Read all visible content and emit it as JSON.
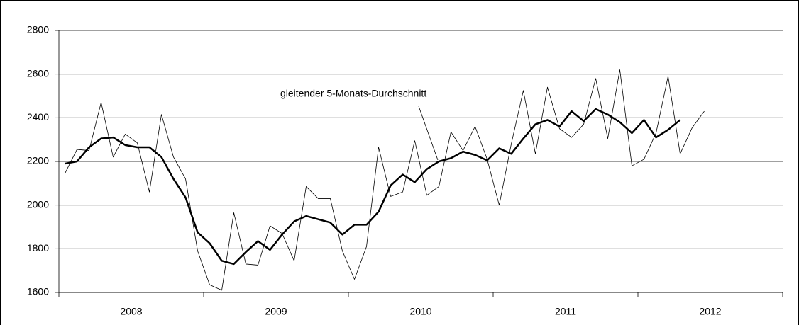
{
  "chart_data": {
    "type": "line",
    "categories": [
      null,
      null,
      null,
      null,
      null,
      null,
      "2008",
      null,
      null,
      null,
      null,
      null,
      null,
      null,
      null,
      null,
      null,
      null,
      "2009",
      null,
      null,
      null,
      null,
      null,
      null,
      null,
      null,
      null,
      null,
      null,
      "2010",
      null,
      null,
      null,
      null,
      null,
      null,
      null,
      null,
      null,
      null,
      null,
      "2011",
      null,
      null,
      null,
      null,
      null,
      null,
      null,
      null,
      null,
      null,
      null,
      "2012",
      null,
      null,
      null,
      null,
      null
    ],
    "series": [
      {
        "color": "#000000",
        "width": 0.8,
        "values": [
          2145,
          2255,
          2250,
          2470,
          2220,
          2325,
          2285,
          2060,
          2415,
          2220,
          2120,
          1790,
          1635,
          1610,
          1965,
          1730,
          1725,
          1905,
          1870,
          1745,
          2085,
          2030,
          2030,
          1790,
          1660,
          1810,
          2265,
          2040,
          2060,
          2295,
          2045,
          2085,
          2335,
          2250,
          2360,
          2210,
          2000,
          2280,
          2525,
          2235,
          2540,
          2350,
          2310,
          2370,
          2580,
          2305,
          2620,
          2180,
          2210,
          2330,
          2590,
          2235,
          2355,
          2430,
          null,
          null,
          null,
          null,
          null,
          null
        ]
      },
      {
        "name": "gleitender 5-Monats-Durchschnitt",
        "color": "#000000",
        "width": 2.5,
        "values": [
          2190,
          2200,
          2265,
          2305,
          2310,
          2275,
          2265,
          2265,
          2220,
          2120,
          2035,
          1875,
          1825,
          1745,
          1730,
          1785,
          1835,
          1795,
          1865,
          1925,
          1950,
          1935,
          1920,
          1865,
          1910,
          1910,
          1970,
          2090,
          2140,
          2105,
          2165,
          2200,
          2215,
          2245,
          2230,
          2205,
          2260,
          2235,
          2305,
          2370,
          2390,
          2360,
          2430,
          2385,
          2440,
          2415,
          2380,
          2330,
          2390,
          2310,
          2345,
          2390,
          null,
          null,
          null,
          null,
          null,
          null,
          null,
          null
        ]
      }
    ],
    "ylim": [
      1600,
      2800
    ],
    "yticks": [
      1600,
      1800,
      2000,
      2200,
      2400,
      2600,
      2800
    ],
    "grid": true
  }
}
